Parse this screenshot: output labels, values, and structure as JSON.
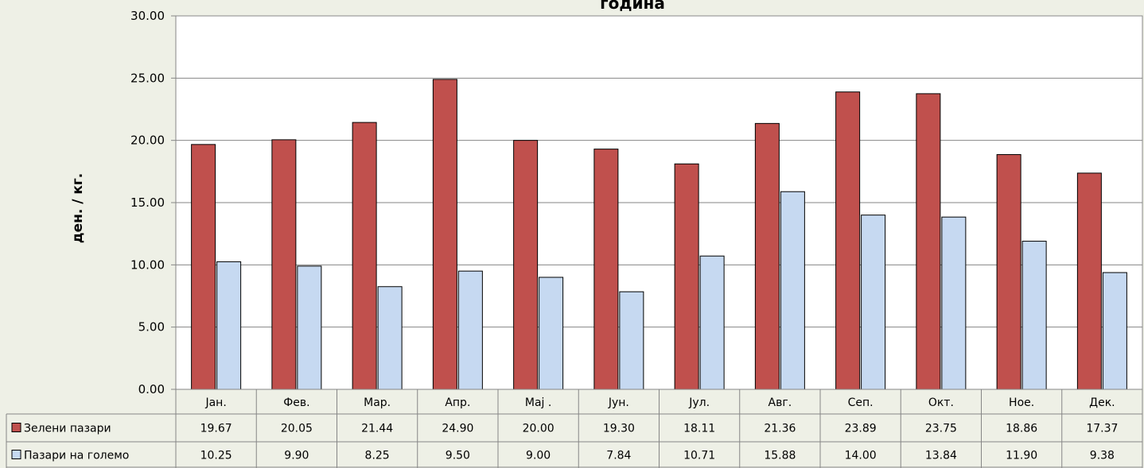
{
  "chart_data": {
    "type": "bar",
    "title": "година",
    "ylabel": "ден. / кг.",
    "xlabel": "",
    "ylim": [
      0,
      30
    ],
    "yticks": [
      "0.00",
      "5.00",
      "10.00",
      "15.00",
      "20.00",
      "25.00",
      "30.00"
    ],
    "categories": [
      "Јан.",
      "Фев.",
      "Мар.",
      "Апр.",
      "Мај .",
      "Јун.",
      "Јул.",
      "Авг.",
      "Сеп.",
      "Окт.",
      "Ное.",
      "Дек."
    ],
    "series": [
      {
        "name": "Зелени пазари",
        "color": "#c0504d",
        "values": [
          19.67,
          20.05,
          21.44,
          24.9,
          20.0,
          19.3,
          18.11,
          21.36,
          23.89,
          23.75,
          18.86,
          17.37
        ],
        "labels": [
          "19.67",
          "20.05",
          "21.44",
          "24.90",
          "20.00",
          "19.30",
          "18.11",
          "21.36",
          "23.89",
          "23.75",
          "18.86",
          "17.37"
        ]
      },
      {
        "name": "Пазари на големо",
        "color": "#c6d9f1",
        "values": [
          10.25,
          9.9,
          8.25,
          9.5,
          9.0,
          7.84,
          10.71,
          15.88,
          14.0,
          13.84,
          11.9,
          9.38
        ],
        "labels": [
          "10.25",
          "9.90",
          "8.25",
          "9.50",
          "9.00",
          "7.84",
          "10.71",
          "15.88",
          "14.00",
          "13.84",
          "11.90",
          "9.38"
        ]
      }
    ],
    "grid": true,
    "legend": "data-table"
  }
}
